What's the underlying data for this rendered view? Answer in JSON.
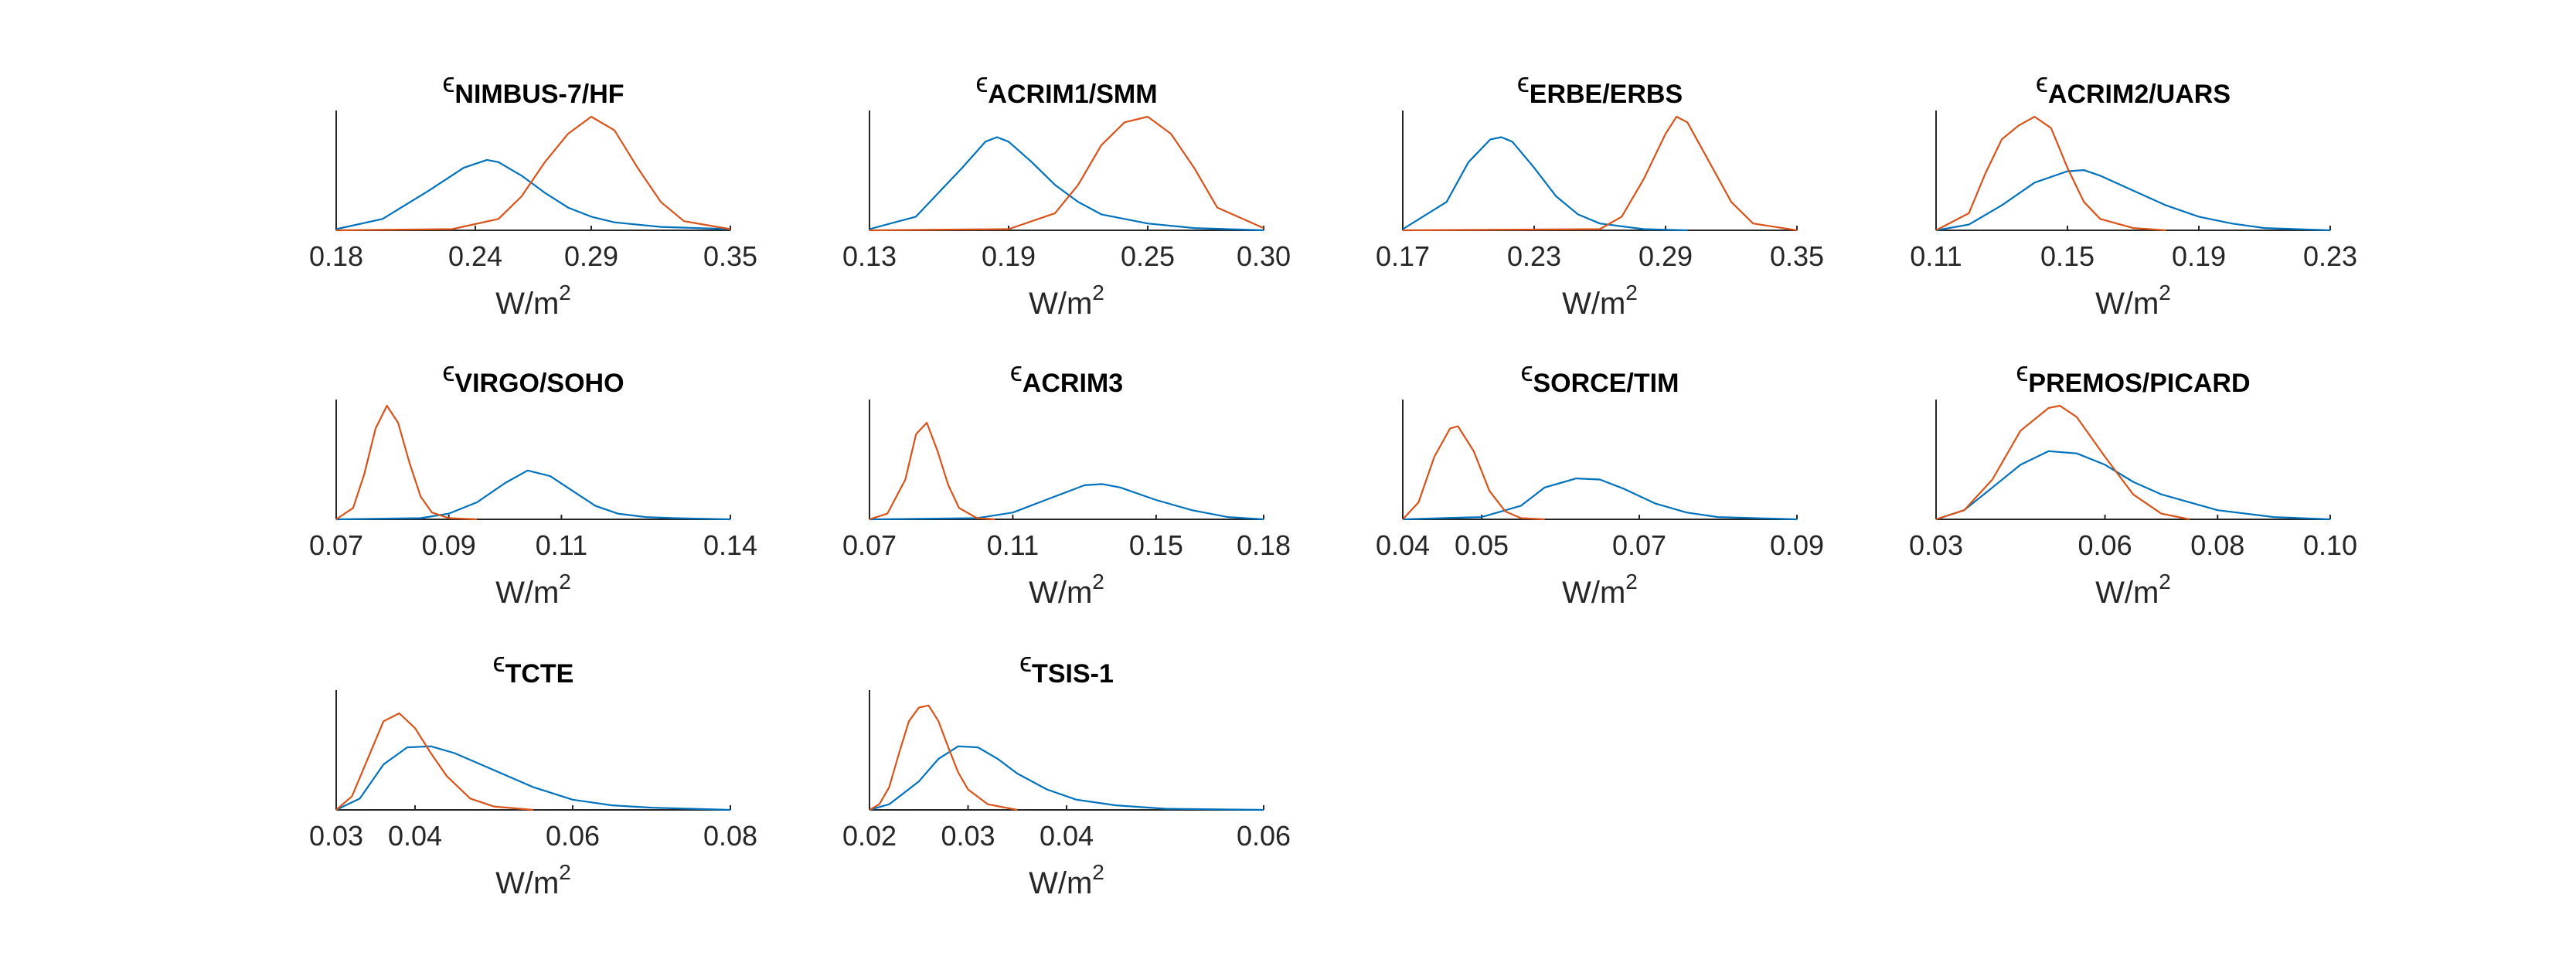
{
  "colors": {
    "series_a": "#0072BD",
    "series_b": "#D95319",
    "axis": "#262626"
  },
  "chart_data": [
    {
      "type": "line",
      "title": {
        "symbol": "ϵ",
        "subscript": "NIMBUS-7/HF"
      },
      "xlabel": {
        "base": "W/m",
        "sup": "2"
      },
      "xlim": [
        0.18,
        0.35
      ],
      "xticks": [
        "0.18",
        "0.24",
        "0.29",
        "0.35"
      ],
      "series": [
        {
          "color": "#0072BD",
          "x": [
            0.18,
            0.2,
            0.22,
            0.235,
            0.245,
            0.25,
            0.26,
            0.27,
            0.28,
            0.29,
            0.3,
            0.32,
            0.35
          ],
          "y": [
            0.01,
            0.1,
            0.35,
            0.55,
            0.62,
            0.6,
            0.48,
            0.33,
            0.2,
            0.12,
            0.07,
            0.03,
            0.01
          ]
        },
        {
          "color": "#D95319",
          "x": [
            0.18,
            0.23,
            0.25,
            0.26,
            0.27,
            0.28,
            0.29,
            0.3,
            0.31,
            0.32,
            0.33,
            0.35
          ],
          "y": [
            0.0,
            0.01,
            0.1,
            0.3,
            0.6,
            0.85,
            1.0,
            0.88,
            0.55,
            0.25,
            0.08,
            0.01
          ]
        }
      ]
    },
    {
      "type": "line",
      "title": {
        "symbol": "ϵ",
        "subscript": "ACRIM1/SMM"
      },
      "xlabel": {
        "base": "W/m",
        "sup": "2"
      },
      "xlim": [
        0.13,
        0.3
      ],
      "xticks": [
        "0.13",
        "0.19",
        "0.25",
        "0.30"
      ],
      "series": [
        {
          "color": "#0072BD",
          "x": [
            0.13,
            0.15,
            0.17,
            0.18,
            0.185,
            0.19,
            0.2,
            0.21,
            0.22,
            0.23,
            0.25,
            0.27,
            0.3
          ],
          "y": [
            0.01,
            0.12,
            0.55,
            0.78,
            0.82,
            0.78,
            0.6,
            0.4,
            0.25,
            0.14,
            0.06,
            0.02,
            0.0
          ]
        },
        {
          "color": "#D95319",
          "x": [
            0.13,
            0.19,
            0.21,
            0.22,
            0.23,
            0.24,
            0.25,
            0.26,
            0.27,
            0.28,
            0.3
          ],
          "y": [
            0.0,
            0.01,
            0.15,
            0.4,
            0.75,
            0.95,
            1.0,
            0.85,
            0.55,
            0.2,
            0.02
          ]
        }
      ]
    },
    {
      "type": "line",
      "title": {
        "symbol": "ϵ",
        "subscript": "ERBE/ERBS"
      },
      "xlabel": {
        "base": "W/m",
        "sup": "2"
      },
      "xlim": [
        0.17,
        0.35
      ],
      "xticks": [
        "0.17",
        "0.23",
        "0.29",
        "0.35"
      ],
      "series": [
        {
          "color": "#0072BD",
          "x": [
            0.17,
            0.19,
            0.2,
            0.21,
            0.215,
            0.22,
            0.23,
            0.24,
            0.25,
            0.26,
            0.28,
            0.3
          ],
          "y": [
            0.01,
            0.25,
            0.6,
            0.8,
            0.82,
            0.78,
            0.55,
            0.3,
            0.14,
            0.06,
            0.01,
            0.0
          ]
        },
        {
          "color": "#D95319",
          "x": [
            0.17,
            0.26,
            0.27,
            0.28,
            0.29,
            0.295,
            0.3,
            0.31,
            0.32,
            0.33,
            0.35
          ],
          "y": [
            0.0,
            0.01,
            0.12,
            0.45,
            0.85,
            1.0,
            0.95,
            0.6,
            0.25,
            0.06,
            0.0
          ]
        }
      ]
    },
    {
      "type": "line",
      "title": {
        "symbol": "ϵ",
        "subscript": "ACRIM2/UARS"
      },
      "xlabel": {
        "base": "W/m",
        "sup": "2"
      },
      "xlim": [
        0.11,
        0.23
      ],
      "xticks": [
        "0.11",
        "0.15",
        "0.19",
        "0.23"
      ],
      "series": [
        {
          "color": "#0072BD",
          "x": [
            0.11,
            0.12,
            0.13,
            0.14,
            0.15,
            0.155,
            0.16,
            0.17,
            0.18,
            0.19,
            0.2,
            0.21,
            0.23
          ],
          "y": [
            0.0,
            0.05,
            0.22,
            0.42,
            0.52,
            0.53,
            0.48,
            0.35,
            0.22,
            0.12,
            0.06,
            0.02,
            0.0
          ]
        },
        {
          "color": "#D95319",
          "x": [
            0.11,
            0.12,
            0.125,
            0.13,
            0.135,
            0.14,
            0.145,
            0.15,
            0.155,
            0.16,
            0.17,
            0.18
          ],
          "y": [
            0.0,
            0.15,
            0.5,
            0.8,
            0.92,
            1.0,
            0.9,
            0.55,
            0.25,
            0.1,
            0.02,
            0.0
          ]
        }
      ]
    },
    {
      "type": "line",
      "title": {
        "symbol": "ϵ",
        "subscript": "VIRGO/SOHO"
      },
      "xlabel": {
        "base": "W/m",
        "sup": "2"
      },
      "xlim": [
        0.07,
        0.14
      ],
      "xticks": [
        "0.07",
        "0.09",
        "0.11",
        "0.14"
      ],
      "series": [
        {
          "color": "#0072BD",
          "x": [
            0.07,
            0.085,
            0.09,
            0.095,
            0.1,
            0.104,
            0.108,
            0.112,
            0.116,
            0.12,
            0.125,
            0.13,
            0.14
          ],
          "y": [
            0.0,
            0.01,
            0.05,
            0.15,
            0.32,
            0.43,
            0.38,
            0.25,
            0.12,
            0.05,
            0.02,
            0.01,
            0.0
          ]
        },
        {
          "color": "#D95319",
          "x": [
            0.07,
            0.073,
            0.075,
            0.077,
            0.079,
            0.081,
            0.083,
            0.085,
            0.087,
            0.09,
            0.095
          ],
          "y": [
            0.0,
            0.1,
            0.4,
            0.8,
            1.0,
            0.85,
            0.5,
            0.2,
            0.06,
            0.01,
            0.0
          ]
        }
      ]
    },
    {
      "type": "line",
      "title": {
        "symbol": "ϵ",
        "subscript": "ACRIM3"
      },
      "xlabel": {
        "base": "W/m",
        "sup": "2"
      },
      "xlim": [
        0.07,
        0.18
      ],
      "xticks": [
        "0.07",
        "0.11",
        "0.15",
        "0.18"
      ],
      "series": [
        {
          "color": "#0072BD",
          "x": [
            0.07,
            0.1,
            0.11,
            0.12,
            0.13,
            0.135,
            0.14,
            0.15,
            0.16,
            0.17,
            0.18
          ],
          "y": [
            0.0,
            0.01,
            0.06,
            0.18,
            0.3,
            0.31,
            0.28,
            0.17,
            0.08,
            0.02,
            0.0
          ]
        },
        {
          "color": "#D95319",
          "x": [
            0.07,
            0.075,
            0.08,
            0.083,
            0.086,
            0.089,
            0.092,
            0.095,
            0.1,
            0.105
          ],
          "y": [
            0.0,
            0.05,
            0.35,
            0.75,
            0.85,
            0.6,
            0.3,
            0.1,
            0.01,
            0.0
          ]
        }
      ]
    },
    {
      "type": "line",
      "title": {
        "symbol": "ϵ",
        "subscript": "SORCE/TIM"
      },
      "xlabel": {
        "base": "W/m",
        "sup": "2"
      },
      "xlim": [
        0.04,
        0.09
      ],
      "xticks": [
        "0.04",
        "0.05",
        "0.07",
        "0.09"
      ],
      "series": [
        {
          "color": "#0072BD",
          "x": [
            0.04,
            0.05,
            0.055,
            0.058,
            0.062,
            0.065,
            0.068,
            0.072,
            0.076,
            0.08,
            0.09
          ],
          "y": [
            0.0,
            0.02,
            0.12,
            0.28,
            0.36,
            0.35,
            0.27,
            0.14,
            0.06,
            0.02,
            0.0
          ]
        },
        {
          "color": "#D95319",
          "x": [
            0.04,
            0.042,
            0.044,
            0.046,
            0.047,
            0.049,
            0.051,
            0.053,
            0.055,
            0.058
          ],
          "y": [
            0.0,
            0.15,
            0.55,
            0.8,
            0.82,
            0.6,
            0.25,
            0.07,
            0.01,
            0.0
          ]
        }
      ]
    },
    {
      "type": "line",
      "title": {
        "symbol": "ϵ",
        "subscript": "PREMOS/PICARD"
      },
      "xlabel": {
        "base": "W/m",
        "sup": "2"
      },
      "xlim": [
        0.03,
        0.1
      ],
      "xticks": [
        "0.03",
        "0.06",
        "0.08",
        "0.10"
      ],
      "series": [
        {
          "color": "#0072BD",
          "x": [
            0.03,
            0.035,
            0.04,
            0.045,
            0.05,
            0.055,
            0.06,
            0.065,
            0.07,
            0.08,
            0.09,
            0.1
          ],
          "y": [
            0.0,
            0.08,
            0.28,
            0.48,
            0.6,
            0.58,
            0.48,
            0.33,
            0.22,
            0.08,
            0.02,
            0.0
          ]
        },
        {
          "color": "#D95319",
          "x": [
            0.03,
            0.035,
            0.04,
            0.045,
            0.05,
            0.052,
            0.055,
            0.06,
            0.065,
            0.07,
            0.075
          ],
          "y": [
            0.0,
            0.08,
            0.35,
            0.78,
            0.98,
            1.0,
            0.9,
            0.55,
            0.22,
            0.05,
            0.0
          ]
        }
      ]
    },
    {
      "type": "line",
      "title": {
        "symbol": "ϵ",
        "subscript": "TCTE"
      },
      "xlabel": {
        "base": "W/m",
        "sup": "2"
      },
      "xlim": [
        0.03,
        0.08
      ],
      "xticks": [
        "0.03",
        "0.04",
        "0.06",
        "0.08"
      ],
      "series": [
        {
          "color": "#0072BD",
          "x": [
            0.03,
            0.033,
            0.036,
            0.039,
            0.042,
            0.045,
            0.05,
            0.055,
            0.06,
            0.065,
            0.07,
            0.08
          ],
          "y": [
            0.0,
            0.1,
            0.4,
            0.55,
            0.56,
            0.5,
            0.35,
            0.2,
            0.09,
            0.04,
            0.02,
            0.0
          ]
        },
        {
          "color": "#D95319",
          "x": [
            0.03,
            0.032,
            0.034,
            0.036,
            0.038,
            0.04,
            0.042,
            0.044,
            0.047,
            0.05,
            0.055
          ],
          "y": [
            0.0,
            0.12,
            0.45,
            0.78,
            0.85,
            0.72,
            0.5,
            0.3,
            0.1,
            0.03,
            0.0
          ]
        }
      ]
    },
    {
      "type": "line",
      "title": {
        "symbol": "ϵ",
        "subscript": "TSIS-1"
      },
      "xlabel": {
        "base": "W/m",
        "sup": "2"
      },
      "xlim": [
        0.02,
        0.06
      ],
      "xticks": [
        "0.02",
        "0.03",
        "0.04",
        "0.06"
      ],
      "series": [
        {
          "color": "#0072BD",
          "x": [
            0.02,
            0.022,
            0.025,
            0.027,
            0.029,
            0.031,
            0.033,
            0.035,
            0.038,
            0.041,
            0.045,
            0.05,
            0.06
          ],
          "y": [
            0.0,
            0.05,
            0.25,
            0.45,
            0.56,
            0.55,
            0.45,
            0.32,
            0.18,
            0.09,
            0.04,
            0.01,
            0.0
          ]
        },
        {
          "color": "#D95319",
          "x": [
            0.02,
            0.021,
            0.022,
            0.023,
            0.024,
            0.025,
            0.026,
            0.027,
            0.028,
            0.029,
            0.03,
            0.032,
            0.035
          ],
          "y": [
            0.0,
            0.05,
            0.2,
            0.5,
            0.78,
            0.9,
            0.92,
            0.78,
            0.55,
            0.33,
            0.18,
            0.05,
            0.0
          ]
        }
      ]
    }
  ]
}
